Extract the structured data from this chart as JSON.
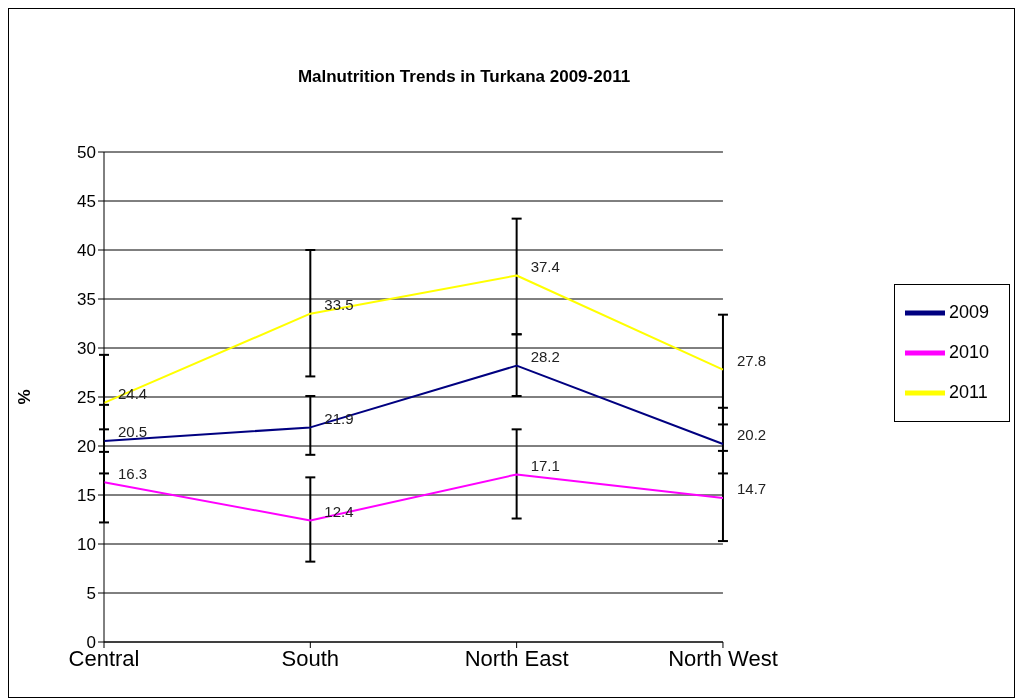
{
  "chart_data": {
    "type": "line",
    "title": "Malnutrition Trends in Turkana 2009-2011",
    "ylabel": "%",
    "categories": [
      "Central",
      "South",
      "North East",
      "North West"
    ],
    "series": [
      {
        "name": "2009",
        "color": "#000080",
        "values": [
          20.5,
          21.9,
          28.2,
          20.2
        ],
        "errors": [
          [
            17.2,
            24.2
          ],
          [
            19.1,
            25.1
          ],
          [
            25.1,
            31.4
          ],
          [
            17.2,
            23.9
          ]
        ]
      },
      {
        "name": "2010",
        "color": "#ff00ff",
        "values": [
          16.3,
          12.4,
          17.1,
          14.7
        ],
        "errors": [
          [
            12.2,
            19.4
          ],
          [
            8.2,
            16.8
          ],
          [
            12.6,
            21.7
          ],
          [
            10.3,
            19.5
          ]
        ]
      },
      {
        "name": "2011",
        "color": "#ffff00",
        "values": [
          24.4,
          33.5,
          37.4,
          27.8
        ],
        "errors": [
          [
            21.7,
            29.3
          ],
          [
            27.1,
            40.0
          ],
          [
            31.4,
            43.2
          ],
          [
            22.2,
            33.4
          ]
        ]
      }
    ],
    "ylim": [
      0,
      50
    ],
    "yticks": [
      0,
      5,
      10,
      15,
      20,
      25,
      30,
      35,
      40,
      45,
      50
    ],
    "grid": "y",
    "legend": "right",
    "marker": "none",
    "line_style": "solid",
    "data_labels": true
  }
}
